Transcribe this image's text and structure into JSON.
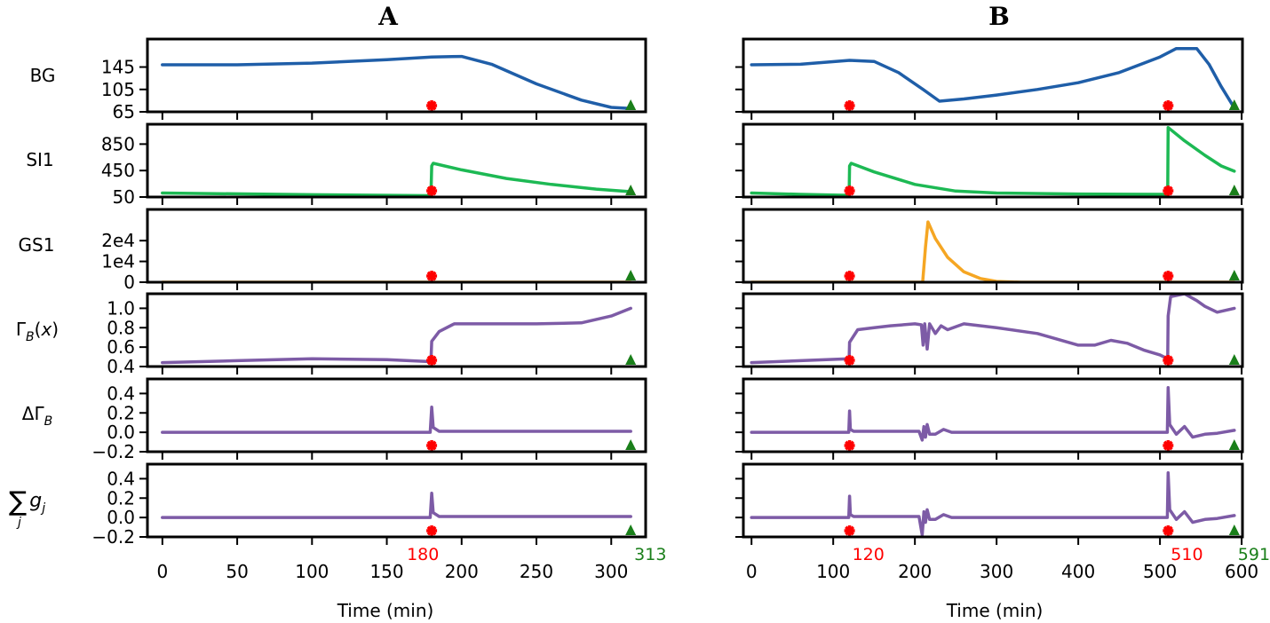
{
  "panels": {
    "A": {
      "title": "A"
    },
    "B": {
      "title": "B"
    }
  },
  "row_labels": [
    "BG",
    "SI1",
    "GS1",
    "Γ_B(x)",
    "ΔΓ_B",
    "Σ_j g_j"
  ],
  "x_axis": {
    "label": "Time (min)"
  },
  "colors": {
    "BG": "#1f5ea8",
    "SI1": "#1db954",
    "GS1": "#f5a623",
    "Gamma": "#7d5ba6",
    "event_marker": "#ff0000",
    "end_marker": "#1a7f1a"
  },
  "chart_data": [
    {
      "panel": "A",
      "type": "line",
      "xlim": [
        -10,
        323
      ],
      "xticks": [
        0,
        50,
        100,
        150,
        200,
        250,
        300
      ],
      "event_times": [
        180
      ],
      "end_time": 313,
      "event_labels": [
        "180"
      ],
      "end_label": "313",
      "rows": [
        {
          "label": "BG",
          "color": "BG",
          "ylim": [
            65,
            195
          ],
          "yticks": [
            145,
            105,
            65
          ],
          "points": [
            [
              0,
              149
            ],
            [
              50,
              149
            ],
            [
              100,
              152
            ],
            [
              150,
              158
            ],
            [
              180,
              163
            ],
            [
              200,
              164
            ],
            [
              220,
              150
            ],
            [
              250,
              115
            ],
            [
              280,
              86
            ],
            [
              300,
              73
            ],
            [
              313,
              71
            ]
          ]
        },
        {
          "label": "SI1",
          "color": "SI1",
          "ylim": [
            50,
            1150
          ],
          "yticks": [
            850,
            450,
            50
          ],
          "points": [
            [
              0,
              110
            ],
            [
              100,
              85
            ],
            [
              179.5,
              70
            ],
            [
              180,
              520
            ],
            [
              181,
              560
            ],
            [
              200,
              460
            ],
            [
              230,
              330
            ],
            [
              260,
              240
            ],
            [
              290,
              170
            ],
            [
              313,
              130
            ]
          ]
        },
        {
          "label": "GS1",
          "color": "GS1",
          "ylim": [
            0,
            35000
          ],
          "yticks": [
            "2e4",
            "1e4",
            "0"
          ],
          "points": [
            [
              0,
              0
            ],
            [
              313,
              0
            ]
          ]
        },
        {
          "label": "Γ_B(x)",
          "color": "Gamma",
          "ylim": [
            0.4,
            1.15
          ],
          "yticks": [
            1.0,
            0.8,
            0.6,
            0.4
          ],
          "points": [
            [
              0,
              0.44
            ],
            [
              50,
              0.46
            ],
            [
              100,
              0.48
            ],
            [
              150,
              0.47
            ],
            [
              179.5,
              0.45
            ],
            [
              180,
              0.66
            ],
            [
              185,
              0.76
            ],
            [
              195,
              0.84
            ],
            [
              250,
              0.84
            ],
            [
              280,
              0.85
            ],
            [
              300,
              0.92
            ],
            [
              313,
              1.0
            ]
          ]
        },
        {
          "label": "ΔΓ_B",
          "color": "Gamma",
          "ylim": [
            -0.2,
            0.55
          ],
          "yticks": [
            0.4,
            0.2,
            0.0,
            -0.2
          ],
          "points": [
            [
              0,
              0.0
            ],
            [
              179,
              0.0
            ],
            [
              180,
              0.26
            ],
            [
              181,
              0.05
            ],
            [
              185,
              0.01
            ],
            [
              313,
              0.01
            ]
          ]
        },
        {
          "label": "Σ_j g_j",
          "color": "Gamma",
          "ylim": [
            -0.2,
            0.55
          ],
          "yticks": [
            0.4,
            0.2,
            0.0,
            -0.2
          ],
          "points": [
            [
              0,
              0.0
            ],
            [
              179,
              0.0
            ],
            [
              180,
              0.25
            ],
            [
              181,
              0.05
            ],
            [
              185,
              0.01
            ],
            [
              313,
              0.01
            ]
          ]
        }
      ]
    },
    {
      "panel": "B",
      "type": "line",
      "xlim": [
        -10,
        601
      ],
      "xticks": [
        0,
        100,
        200,
        300,
        400,
        500,
        600
      ],
      "event_times": [
        120,
        510
      ],
      "end_time": 591,
      "event_labels": [
        "120",
        "510"
      ],
      "end_label": "591",
      "rows": [
        {
          "label": "BG",
          "color": "BG",
          "ylim": [
            65,
            195
          ],
          "yticks": [
            145,
            105,
            65
          ],
          "points": [
            [
              0,
              149
            ],
            [
              60,
              150
            ],
            [
              120,
              157
            ],
            [
              150,
              155
            ],
            [
              180,
              135
            ],
            [
              210,
              105
            ],
            [
              230,
              84
            ],
            [
              260,
              88
            ],
            [
              300,
              95
            ],
            [
              350,
              105
            ],
            [
              400,
              117
            ],
            [
              450,
              135
            ],
            [
              500,
              163
            ],
            [
              520,
              178
            ],
            [
              545,
              178
            ],
            [
              560,
              150
            ],
            [
              575,
              110
            ],
            [
              591,
              72
            ]
          ]
        },
        {
          "label": "SI1",
          "color": "SI1",
          "ylim": [
            50,
            1150
          ],
          "yticks": [
            850,
            450,
            50
          ],
          "points": [
            [
              0,
              110
            ],
            [
              60,
              90
            ],
            [
              119.5,
              75
            ],
            [
              120,
              520
            ],
            [
              122,
              560
            ],
            [
              150,
              430
            ],
            [
              200,
              240
            ],
            [
              250,
              140
            ],
            [
              300,
              110
            ],
            [
              400,
              95
            ],
            [
              509.5,
              90
            ],
            [
              510,
              1100
            ],
            [
              530,
              900
            ],
            [
              555,
              680
            ],
            [
              575,
              520
            ],
            [
              591,
              440
            ]
          ]
        },
        {
          "label": "GS1",
          "color": "GS1",
          "ylim": [
            0,
            35000
          ],
          "yticks": [
            "2e4",
            "1e4",
            "0"
          ],
          "points": [
            [
              0,
              0
            ],
            [
              209.5,
              0
            ],
            [
              213,
              17000
            ],
            [
              216,
              29000
            ],
            [
              225,
              21000
            ],
            [
              240,
              12000
            ],
            [
              260,
              5000
            ],
            [
              280,
              1800
            ],
            [
              300,
              400
            ],
            [
              330,
              0
            ],
            [
              591,
              0
            ]
          ]
        },
        {
          "label": "Γ_B(x)",
          "color": "Gamma",
          "ylim": [
            0.4,
            1.15
          ],
          "yticks": [
            1.0,
            0.8,
            0.6,
            0.4
          ],
          "points": [
            [
              0,
              0.44
            ],
            [
              60,
              0.46
            ],
            [
              119.5,
              0.48
            ],
            [
              120,
              0.65
            ],
            [
              130,
              0.78
            ],
            [
              150,
              0.8
            ],
            [
              170,
              0.82
            ],
            [
              200,
              0.84
            ],
            [
              208,
              0.83
            ],
            [
              210,
              0.62
            ],
            [
              212,
              0.84
            ],
            [
              215,
              0.58
            ],
            [
              218,
              0.84
            ],
            [
              225,
              0.74
            ],
            [
              232,
              0.82
            ],
            [
              240,
              0.78
            ],
            [
              260,
              0.84
            ],
            [
              300,
              0.8
            ],
            [
              350,
              0.74
            ],
            [
              400,
              0.62
            ],
            [
              420,
              0.62
            ],
            [
              440,
              0.67
            ],
            [
              460,
              0.64
            ],
            [
              480,
              0.57
            ],
            [
              500,
              0.52
            ],
            [
              509.5,
              0.48
            ],
            [
              510,
              0.92
            ],
            [
              513,
              1.12
            ],
            [
              530,
              1.15
            ],
            [
              545,
              1.08
            ],
            [
              555,
              1.02
            ],
            [
              570,
              0.96
            ],
            [
              591,
              1.0
            ]
          ]
        },
        {
          "label": "ΔΓ_B",
          "color": "Gamma",
          "ylim": [
            -0.2,
            0.55
          ],
          "yticks": [
            0.4,
            0.2,
            0.0,
            -0.2
          ],
          "points": [
            [
              0,
              0.0
            ],
            [
              119,
              0.0
            ],
            [
              120,
              0.22
            ],
            [
              121,
              0.03
            ],
            [
              125,
              0.01
            ],
            [
              205,
              0.01
            ],
            [
              209,
              -0.08
            ],
            [
              211,
              0.06
            ],
            [
              213,
              -0.05
            ],
            [
              215,
              0.08
            ],
            [
              218,
              -0.02
            ],
            [
              225,
              -0.02
            ],
            [
              235,
              0.03
            ],
            [
              245,
              0.0
            ],
            [
              300,
              0.0
            ],
            [
              509,
              0.0
            ],
            [
              510,
              0.46
            ],
            [
              512,
              0.08
            ],
            [
              520,
              -0.02
            ],
            [
              530,
              0.06
            ],
            [
              540,
              -0.05
            ],
            [
              555,
              -0.02
            ],
            [
              570,
              -0.01
            ],
            [
              591,
              0.02
            ]
          ]
        },
        {
          "label": "Σ_j g_j",
          "color": "Gamma",
          "ylim": [
            -0.2,
            0.55
          ],
          "yticks": [
            0.4,
            0.2,
            0.0,
            -0.2
          ],
          "points": [
            [
              0,
              0.0
            ],
            [
              119,
              0.0
            ],
            [
              120,
              0.22
            ],
            [
              121,
              0.03
            ],
            [
              125,
              0.01
            ],
            [
              205,
              0.01
            ],
            [
              209,
              -0.18
            ],
            [
              211,
              0.06
            ],
            [
              213,
              -0.05
            ],
            [
              215,
              0.08
            ],
            [
              218,
              -0.02
            ],
            [
              225,
              -0.02
            ],
            [
              235,
              0.03
            ],
            [
              245,
              0.0
            ],
            [
              300,
              0.0
            ],
            [
              509,
              0.0
            ],
            [
              510,
              0.46
            ],
            [
              512,
              0.08
            ],
            [
              520,
              -0.02
            ],
            [
              530,
              0.06
            ],
            [
              540,
              -0.05
            ],
            [
              555,
              -0.02
            ],
            [
              570,
              -0.01
            ],
            [
              591,
              0.02
            ]
          ]
        }
      ]
    }
  ]
}
